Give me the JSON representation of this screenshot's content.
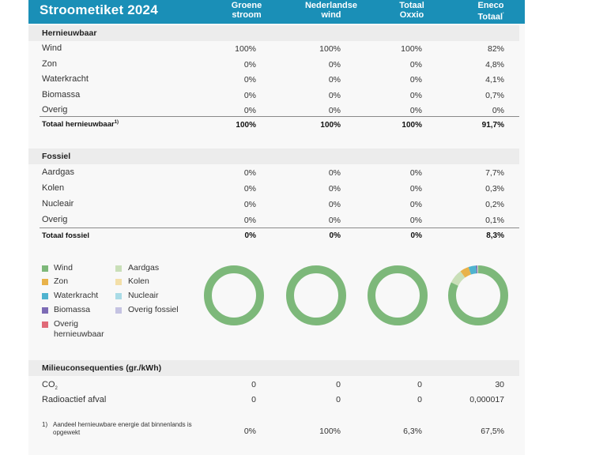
{
  "header": {
    "title": "Stroometiket 2024",
    "columns": [
      {
        "line1": "Groene",
        "line2": "stroom",
        "sup": ""
      },
      {
        "line1": "Nederlandse",
        "line2": "wind",
        "sup": ""
      },
      {
        "line1": "Totaal",
        "line2": "Oxxio",
        "sup": ""
      },
      {
        "line1": "Eneco",
        "line2": "Totaal",
        "sup": "'"
      }
    ]
  },
  "renewable": {
    "heading": "Hernieuwbaar",
    "rows": [
      {
        "label": "Wind",
        "values": [
          "100%",
          "100%",
          "100%",
          "82%"
        ]
      },
      {
        "label": "Zon",
        "values": [
          "0%",
          "0%",
          "0%",
          "4,8%"
        ]
      },
      {
        "label": "Waterkracht",
        "values": [
          "0%",
          "0%",
          "0%",
          "4,1%"
        ]
      },
      {
        "label": "Biomassa",
        "values": [
          "0%",
          "0%",
          "0%",
          "0,7%"
        ]
      },
      {
        "label": "Overig",
        "values": [
          "0%",
          "0%",
          "0%",
          "0%"
        ]
      }
    ],
    "total": {
      "label": "Totaal hernieuwbaar",
      "sup": "1)",
      "values": [
        "100%",
        "100%",
        "100%",
        "91,7%"
      ]
    }
  },
  "fossil": {
    "heading": "Fossiel",
    "rows": [
      {
        "label": "Aardgas",
        "values": [
          "0%",
          "0%",
          "0%",
          "7,7%"
        ]
      },
      {
        "label": "Kolen",
        "values": [
          "0%",
          "0%",
          "0%",
          "0,3%"
        ]
      },
      {
        "label": "Nucleair",
        "values": [
          "0%",
          "0%",
          "0%",
          "0,2%"
        ]
      },
      {
        "label": "Overig",
        "values": [
          "0%",
          "0%",
          "0%",
          "0,1%"
        ]
      }
    ],
    "total": {
      "label": "Totaal fossiel",
      "values": [
        "0%",
        "0%",
        "0%",
        "8,3%"
      ]
    }
  },
  "legend": {
    "left": [
      {
        "label": "Wind",
        "color": "#7db87a"
      },
      {
        "label": "Zon",
        "color": "#e8b24a"
      },
      {
        "label": "Waterkracht",
        "color": "#4fb3cf"
      },
      {
        "label": "Biomassa",
        "color": "#7d6bb5"
      },
      {
        "label": "Overig",
        "label2": "hernieuwbaar",
        "color": "#e06a78"
      }
    ],
    "right": [
      {
        "label": "Aardgas",
        "color": "#c9dfb8"
      },
      {
        "label": "Kolen",
        "color": "#f3dfa8"
      },
      {
        "label": "Nucleair",
        "color": "#a9dbe6"
      },
      {
        "label": "Overig fossiel",
        "color": "#c5c3e2"
      }
    ]
  },
  "donuts": [
    {
      "name": "Groene stroom",
      "segments": [
        {
          "source": "Wind",
          "value": 100
        }
      ]
    },
    {
      "name": "Nederlandse wind",
      "segments": [
        {
          "source": "Wind",
          "value": 100
        }
      ]
    },
    {
      "name": "Totaal Oxxio",
      "segments": [
        {
          "source": "Wind",
          "value": 100
        }
      ]
    },
    {
      "name": "Eneco Totaal",
      "segments": [
        {
          "source": "Wind",
          "value": 82
        },
        {
          "source": "Aardgas",
          "value": 7.7
        },
        {
          "source": "Zon",
          "value": 4.8
        },
        {
          "source": "Waterkracht",
          "value": 4.1
        },
        {
          "source": "Biomassa",
          "value": 0.7
        },
        {
          "source": "Kolen",
          "value": 0.3
        },
        {
          "source": "Nucleair",
          "value": 0.2
        },
        {
          "source": "Overig fossiel",
          "value": 0.1
        }
      ]
    }
  ],
  "colors": {
    "Wind": "#7db87a",
    "Zon": "#e8b24a",
    "Waterkracht": "#4fb3cf",
    "Biomassa": "#7d6bb5",
    "Overig hernieuwbaar": "#e06a78",
    "Aardgas": "#c9dfb8",
    "Kolen": "#f3dfa8",
    "Nucleair": "#a9dbe6",
    "Overig fossiel": "#c5c3e2",
    "header": "#1a8fb7"
  },
  "consequences": {
    "heading": "Milieuconsequenties (gr./kWh)",
    "rows": [
      {
        "label": "CO",
        "sub": "2",
        "values": [
          "0",
          "0",
          "0",
          "30"
        ]
      },
      {
        "label": "Radioactief afval",
        "values": [
          "0",
          "0",
          "0",
          "0,000017"
        ]
      }
    ]
  },
  "footnote": {
    "number": "1)",
    "text": "Aandeel hernieuwbare energie dat binnenlands is opgewekt",
    "values": [
      "0%",
      "100%",
      "6,3%",
      "67,5%"
    ]
  }
}
